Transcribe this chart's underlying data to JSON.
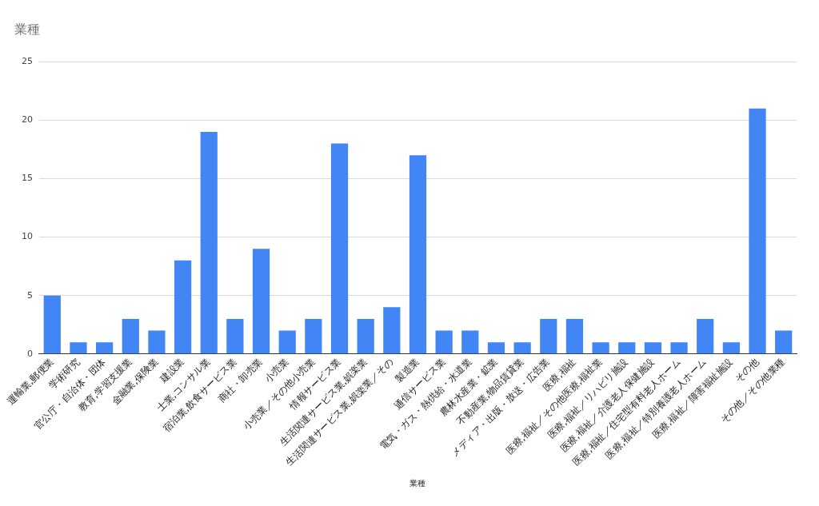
{
  "chart_data": {
    "type": "bar",
    "title": "業種",
    "xlabel": "業種",
    "categories": [
      "運輸業,郵便業",
      "学術研究",
      "官公庁・自治体・団体",
      "教育,学習支援業",
      "金融業,保険業",
      "建設業",
      "士業,コンサル業",
      "宿泊業,飲食サービス業",
      "商社・卸売業",
      "小売業",
      "小売業／その他小売業",
      "情報サービス業",
      "生活関連サービス業,娯楽業",
      "生活関連サービス業,娯楽業／その",
      "製造業",
      "通信サービス業",
      "電気・ガス・熱供給・水道業",
      "農林水産業・鉱業",
      "不動産業,物品賃貸業",
      "メディア・出版・放送・広告業",
      "医療,福祉",
      "医療,福祉／その他医療,福祉業",
      "医療,福祉／リハビリ施設",
      "医療,福祉／介護老人保健施設",
      "医療,福祉／住宅型有料老人ホーム",
      "医療,福祉／特別養護老人ホーム",
      "医療,福祉／障害福祉施設",
      "その他",
      "その他／その他業種"
    ],
    "values": [
      5,
      1,
      1,
      3,
      2,
      8,
      19,
      3,
      9,
      2,
      3,
      18,
      3,
      4,
      17,
      2,
      2,
      1,
      1,
      3,
      3,
      1,
      1,
      1,
      1,
      3,
      1,
      21,
      2
    ],
    "color": "#4285f4",
    "ylim": [
      0,
      25
    ],
    "yticks": [
      0,
      5,
      10,
      15,
      20,
      25
    ],
    "grid": "y",
    "legend": false
  }
}
